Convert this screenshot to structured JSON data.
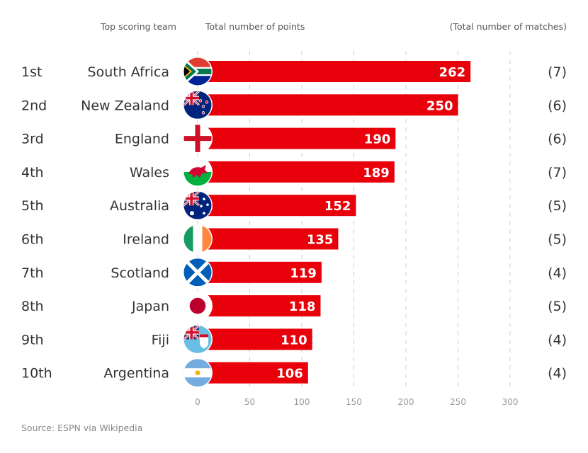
{
  "headers": {
    "team": "Top scoring team",
    "points": "Total number of points",
    "matches": "(Total number of matches)"
  },
  "source": "Source: ESPN via Wikipedia",
  "colors": {
    "bar": "#e8000a",
    "text": "#333333",
    "grid": "#cccccc",
    "axis_text": "#999999"
  },
  "chart_data": {
    "type": "bar",
    "orientation": "horizontal",
    "xlim": [
      0,
      300
    ],
    "x_ticks": [
      0,
      50,
      100,
      150,
      200,
      250,
      300
    ],
    "grid": true,
    "rows": [
      {
        "rank": "1st",
        "team": "South Africa",
        "points": 262,
        "matches": "(7)",
        "flag": "south-africa-flag"
      },
      {
        "rank": "2nd",
        "team": "New Zealand",
        "points": 250,
        "matches": "(6)",
        "flag": "new-zealand-flag"
      },
      {
        "rank": "3rd",
        "team": "England",
        "points": 190,
        "matches": "(6)",
        "flag": "england-flag"
      },
      {
        "rank": "4th",
        "team": "Wales",
        "points": 189,
        "matches": "(7)",
        "flag": "wales-flag"
      },
      {
        "rank": "5th",
        "team": "Australia",
        "points": 152,
        "matches": "(5)",
        "flag": "australia-flag"
      },
      {
        "rank": "6th",
        "team": "Ireland",
        "points": 135,
        "matches": "(5)",
        "flag": "ireland-flag"
      },
      {
        "rank": "7th",
        "team": "Scotland",
        "points": 119,
        "matches": "(4)",
        "flag": "scotland-flag"
      },
      {
        "rank": "8th",
        "team": "Japan",
        "points": 118,
        "matches": "(5)",
        "flag": "japan-flag"
      },
      {
        "rank": "9th",
        "team": "Fiji",
        "points": 110,
        "matches": "(4)",
        "flag": "fiji-flag"
      },
      {
        "rank": "10th",
        "team": "Argentina",
        "points": 106,
        "matches": "(4)",
        "flag": "argentina-flag"
      }
    ]
  }
}
